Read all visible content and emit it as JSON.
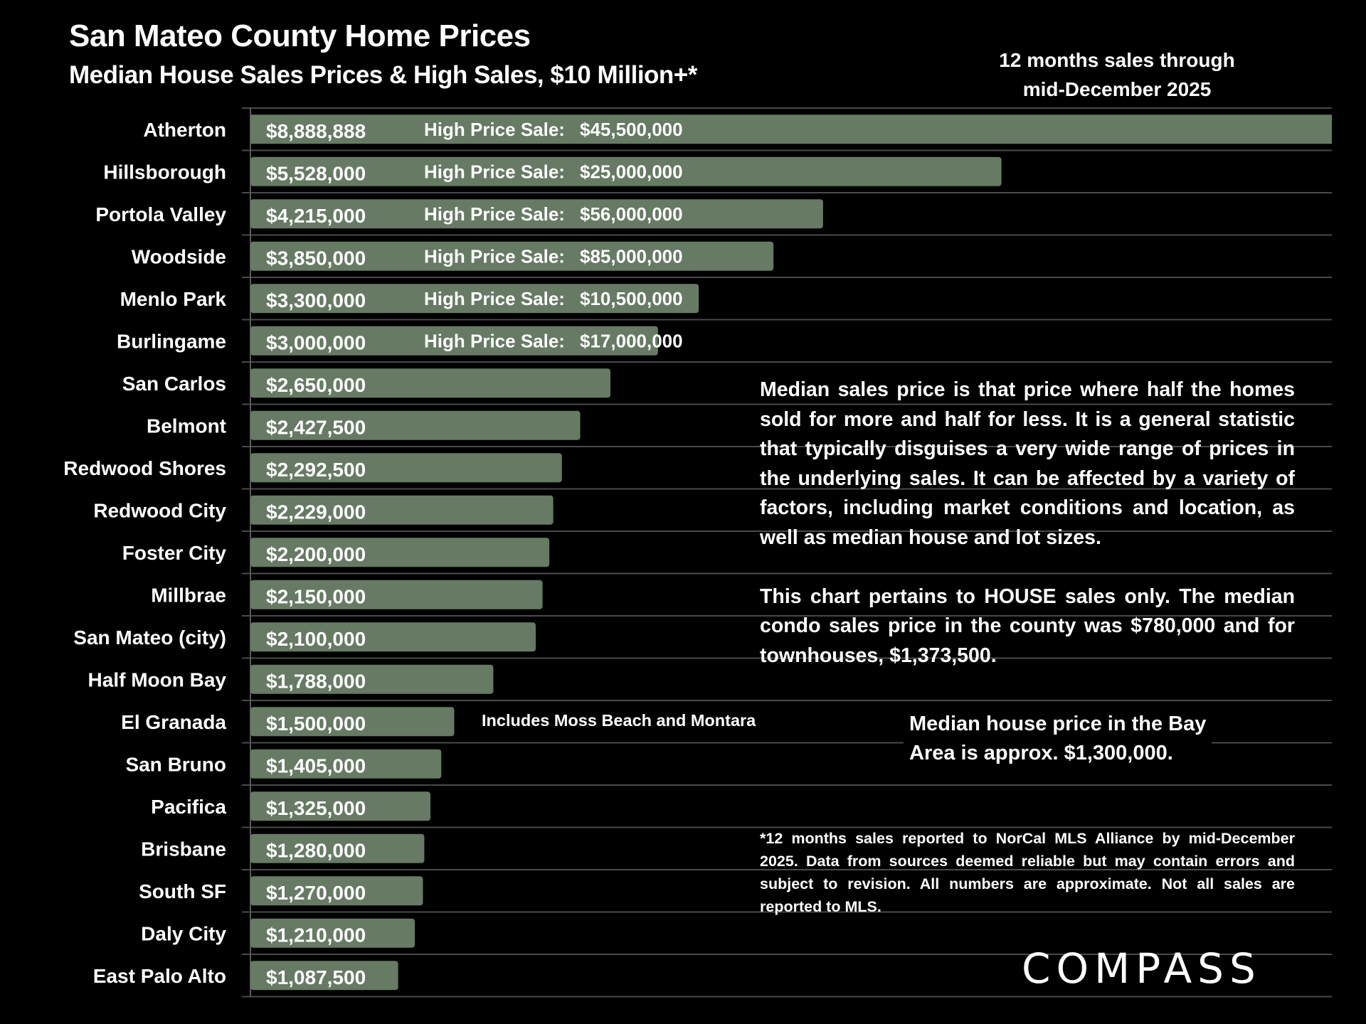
{
  "header": {
    "title": "San Mateo County Home Prices",
    "subtitle": "Median House Sales Prices & High Sales, $10 Million+*",
    "period_line1": "12 months sales through",
    "period_line2": "mid-December 2025"
  },
  "chart_data": {
    "type": "bar",
    "orientation": "horizontal",
    "title": "San Mateo County Home Prices",
    "subtitle": "Median House Sales Prices & High Sales, $10 Million+*",
    "xlabel": "",
    "ylabel": "",
    "xlim": [
      0,
      7960000
    ],
    "grid": true,
    "bar_color": "#667a64",
    "categories": [
      "Atherton",
      "Hillsborough",
      "Portola Valley",
      "Woodside",
      "Menlo Park",
      "Burlingame",
      "San Carlos",
      "Belmont",
      "Redwood Shores",
      "Redwood City",
      "Foster City",
      "Millbrae",
      "San Mateo (city)",
      "Half Moon Bay",
      "El Granada",
      "San Bruno",
      "Pacifica",
      "Brisbane",
      "South SF",
      "Daly City",
      "East Palo Alto"
    ],
    "values": [
      8888888,
      5528000,
      4215000,
      3850000,
      3300000,
      3000000,
      2650000,
      2427500,
      2292500,
      2229000,
      2200000,
      2150000,
      2100000,
      1788000,
      1500000,
      1405000,
      1325000,
      1280000,
      1270000,
      1210000,
      1087500
    ],
    "value_labels": [
      "$8,888,888",
      "$5,528,000",
      "$4,215,000",
      "$3,850,000",
      "$3,300,000",
      "$3,000,000",
      "$2,650,000",
      "$2,427,500",
      "$2,292,500",
      "$2,229,000",
      "$2,200,000",
      "$2,150,000",
      "$2,100,000",
      "$1,788,000",
      "$1,500,000",
      "$1,405,000",
      "$1,325,000",
      "$1,280,000",
      "$1,270,000",
      "$1,210,000",
      "$1,087,500"
    ],
    "high_sale_prefix": "High Price Sale:",
    "high_sales": [
      {
        "category": "Atherton",
        "label": "$45,500,000"
      },
      {
        "category": "Hillsborough",
        "label": "$25,000,000"
      },
      {
        "category": "Portola Valley",
        "label": "$56,000,000"
      },
      {
        "category": "Woodside",
        "label": "$85,000,000"
      },
      {
        "category": "Menlo Park",
        "label": "$10,500,000"
      },
      {
        "category": "Burlingame",
        "label": "$17,000,000"
      }
    ],
    "annotations": [
      {
        "category": "El Granada",
        "text": "Includes Moss Beach and Montara"
      }
    ]
  },
  "notes": {
    "definition_p1": "Median sales price is that price where half the homes sold for more and half for less. It is a general statistic that typically disguises a very wide range of prices in the underlying sales. It can be affected by a variety of factors, including market conditions and location, as well as median house and lot sizes.",
    "definition_p2": "This chart pertains to HOUSE sales only. The median condo sales price in the county was $780,000 and for townhouses, $1,373,500.",
    "bay_area_line1": "Median house price in the Bay",
    "bay_area_line2": "Area is approx. $1,300,000.",
    "source": "*12 months sales reported to NorCal MLS Alliance by mid-December 2025. Data from sources deemed reliable but may contain errors and subject to revision. All numbers are approximate. Not all sales are reported to MLS."
  },
  "brand": {
    "logo_text": "COMPASS"
  }
}
